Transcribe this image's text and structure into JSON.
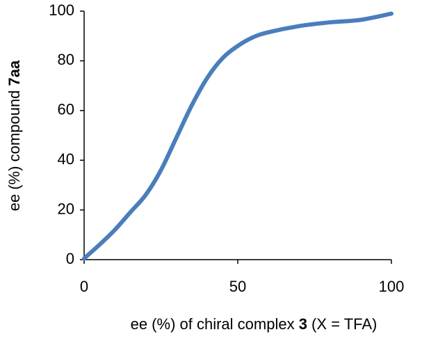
{
  "chart_data": {
    "type": "line",
    "xlabel": [
      {
        "text": "ee (%) of chiral complex "
      },
      {
        "text": "3",
        "bold": true
      },
      {
        "text": " (X = TFA)"
      }
    ],
    "ylabel": [
      {
        "text": "ee (%) compound "
      },
      {
        "text": "7aa",
        "bold": true
      }
    ],
    "x": [
      0,
      5,
      10,
      15,
      20,
      25,
      30,
      35,
      40,
      45,
      50,
      55,
      60,
      70,
      80,
      90,
      100
    ],
    "series": [
      {
        "color": "#4a7ebb",
        "values": [
          0.5,
          6,
          12,
          19,
          26,
          36,
          49,
          62,
          73,
          81,
          86,
          89.5,
          91.5,
          94,
          95.5,
          96.5,
          99
        ]
      }
    ],
    "xlim": [
      0,
      100
    ],
    "xticks": [
      0,
      50,
      100
    ],
    "ylim": [
      0,
      100
    ],
    "yticks": [
      0,
      20,
      40,
      60,
      80,
      100
    ],
    "grid": false
  }
}
